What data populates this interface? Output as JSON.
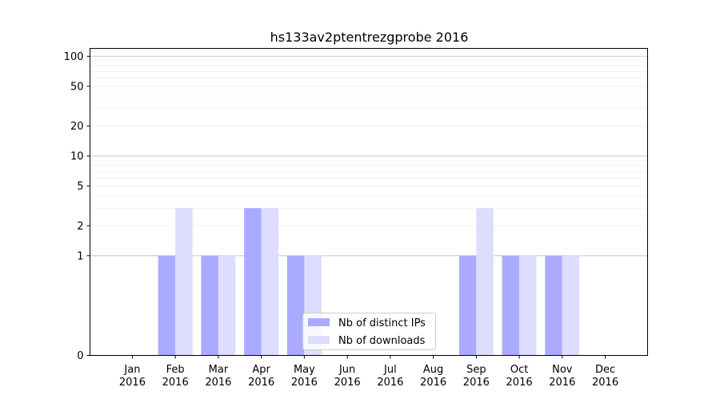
{
  "chart_data": {
    "type": "bar",
    "title": "hs133av2ptentrezgprobe 2016",
    "xlabel": "",
    "ylabel": "",
    "y_scale": "symlog",
    "ylim": [
      0,
      120
    ],
    "y_ticks": [
      0,
      1,
      2,
      5,
      10,
      20,
      50,
      100
    ],
    "y_tick_labels": [
      "0",
      "1",
      "2",
      "5",
      "10",
      "20",
      "50",
      "100"
    ],
    "categories": [
      [
        "Jan",
        "2016"
      ],
      [
        "Feb",
        "2016"
      ],
      [
        "Mar",
        "2016"
      ],
      [
        "Apr",
        "2016"
      ],
      [
        "May",
        "2016"
      ],
      [
        "Jun",
        "2016"
      ],
      [
        "Jul",
        "2016"
      ],
      [
        "Aug",
        "2016"
      ],
      [
        "Sep",
        "2016"
      ],
      [
        "Oct",
        "2016"
      ],
      [
        "Nov",
        "2016"
      ],
      [
        "Dec",
        "2016"
      ]
    ],
    "series": [
      {
        "name": "Nb of distinct IPs",
        "color": "#aaaaff",
        "values": [
          0,
          1,
          1,
          3,
          1,
          0,
          0,
          0,
          1,
          1,
          1,
          0
        ]
      },
      {
        "name": "Nb of downloads",
        "color": "#ddddff",
        "values": [
          0,
          3,
          1,
          3,
          1,
          0,
          0,
          0,
          3,
          1,
          1,
          0
        ]
      }
    ],
    "grid": true,
    "legend_position": "bottom-center"
  }
}
